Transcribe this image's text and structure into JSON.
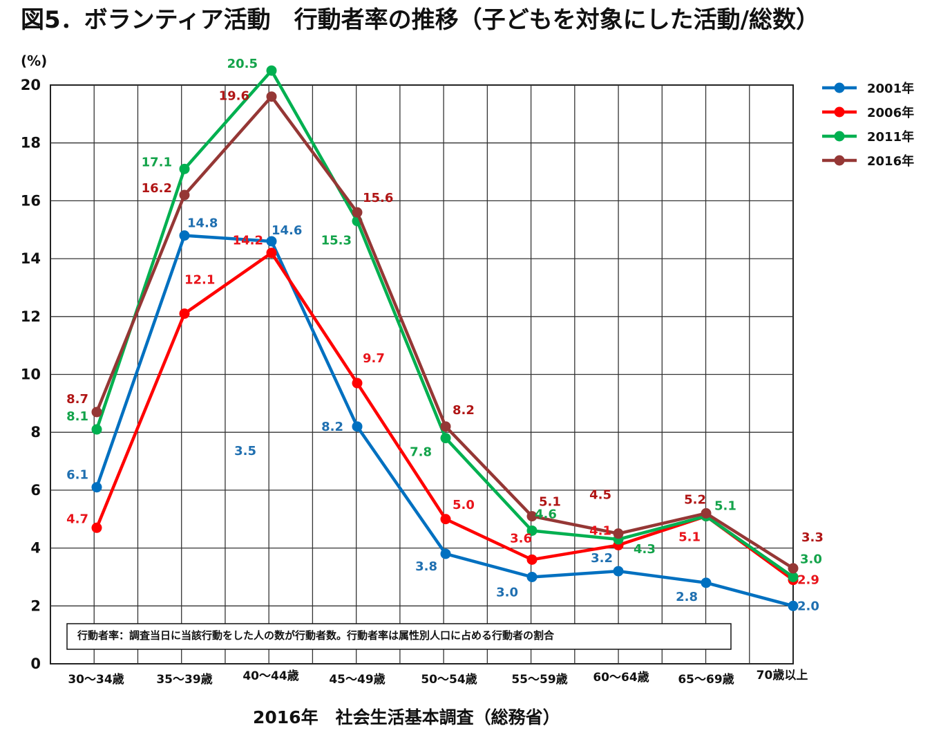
{
  "chart_data": {
    "type": "line",
    "title": "図5．ボランティア活動　行動者率の推移（子どもを対象にした活動/総数）",
    "ylabel": "(%)",
    "xlabel": "",
    "ylim": [
      0,
      20
    ],
    "yticks": [
      "0",
      "2",
      "4",
      "6",
      "8",
      "10",
      "12",
      "14",
      "16",
      "18",
      "20"
    ],
    "grid": true,
    "legend_position": "top-right",
    "categories": [
      "30～34歳",
      "35～39歳",
      "40～44歳",
      "45～49歳",
      "50～54歳",
      "55～59歳",
      "60～64歳",
      "65～69歳",
      "70歳以上"
    ],
    "series": [
      {
        "name": "2001年",
        "color": "#0070c0",
        "label_color": "#1f6fb0",
        "values": [
          6.1,
          14.8,
          14.6,
          8.2,
          3.8,
          3.0,
          3.2,
          2.8,
          2.0
        ],
        "labels": [
          "6.1",
          "14.8",
          "14.6",
          "8.2",
          "3.8",
          "3.0",
          "3.2",
          "2.8",
          "2.0"
        ]
      },
      {
        "name": "2006年",
        "color": "#ff0000",
        "label_color": "#e8141b",
        "values": [
          4.7,
          12.1,
          14.2,
          9.7,
          5.0,
          3.6,
          4.1,
          5.1,
          2.9
        ],
        "labels": [
          "4.7",
          "12.1",
          "14.2",
          "9.7",
          "5.0",
          "3.6",
          "4.1",
          "5.1",
          "2.9"
        ]
      },
      {
        "name": "2011年",
        "color": "#00b050",
        "label_color": "#13a34a",
        "values": [
          8.1,
          17.1,
          20.5,
          15.3,
          7.8,
          4.6,
          4.3,
          5.1,
          3.0
        ],
        "labels": [
          "8.1",
          "17.1",
          "20.5",
          "15.3",
          "7.8",
          "4.6",
          "4.3",
          "5.1",
          "3.0"
        ]
      },
      {
        "name": "2016年",
        "color": "#953735",
        "label_color": "#b01515",
        "values": [
          8.7,
          16.2,
          19.6,
          15.6,
          8.2,
          5.1,
          4.5,
          5.2,
          3.3
        ],
        "labels": [
          "8.7",
          "16.2",
          "19.6",
          "15.6",
          "8.2",
          "5.1",
          "4.5",
          "5.2",
          "3.3"
        ]
      }
    ],
    "annotations": {
      "stray_label": "3.5",
      "stray_label_color": "#1f6fb0"
    },
    "note": "行動者率：調査当日に当該行動をした人の数が行動者数。行動者率は属性別人口に占める行動者の割合",
    "source": "2016年　社会生活基本調査（総務省）"
  }
}
